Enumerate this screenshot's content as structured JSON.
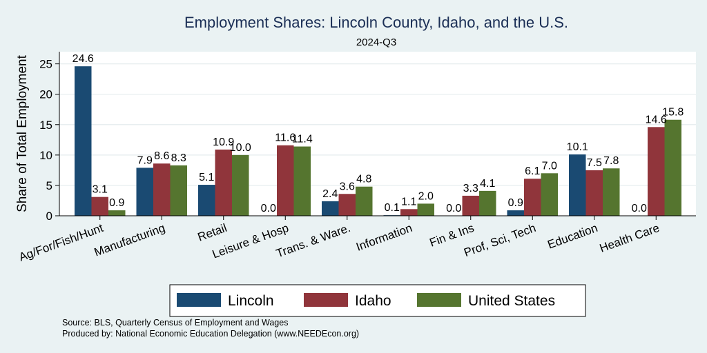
{
  "chart_data": {
    "type": "bar",
    "title": "Employment Shares: Lincoln County, Idaho, and the U.S.",
    "subtitle": "2024-Q3",
    "ylabel": "Share of Total Employment",
    "xlabel": "",
    "ylim": [
      0,
      27
    ],
    "yticks": [
      0,
      5,
      10,
      15,
      20,
      25
    ],
    "grid": true,
    "legend_position": "bottom",
    "categories": [
      "Ag/For/Fish/Hunt",
      "Manufacturing",
      "Retail",
      "Leisure & Hosp",
      "Trans. & Ware.",
      "Information",
      "Fin & Ins",
      "Prof, Sci, Tech",
      "Education",
      "Health Care"
    ],
    "series": [
      {
        "name": "Lincoln",
        "color": "#1a4a72",
        "values": [
          24.6,
          7.9,
          5.1,
          0.0,
          2.4,
          0.1,
          0.0,
          0.9,
          10.1,
          0.0
        ]
      },
      {
        "name": "Idaho",
        "color": "#90353b",
        "values": [
          3.1,
          8.6,
          10.9,
          11.6,
          3.6,
          1.1,
          3.3,
          6.1,
          7.5,
          14.6
        ]
      },
      {
        "name": "United States",
        "color": "#55752f",
        "values": [
          0.9,
          8.3,
          10.0,
          11.4,
          4.8,
          2.0,
          4.1,
          7.0,
          7.8,
          15.8
        ]
      }
    ]
  },
  "source_note": "Source: BLS, Quarterly Census of Employment and Wages",
  "produced_note": "Produced by: National Economic Education Delegation (www.NEEDEcon.org)"
}
